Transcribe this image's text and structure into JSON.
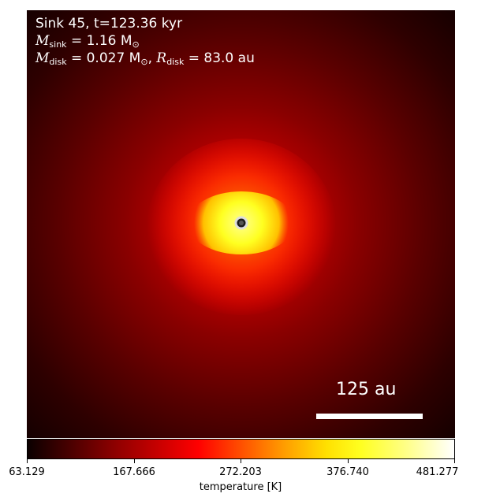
{
  "image": {
    "title_line1": "Sink 45, t=123.36 kyr",
    "m_sink_label": "M",
    "m_sink_sub": "sink",
    "m_sink_value": " = 1.16 M",
    "m_sink_unit_sub": "⊙",
    "m_disk_label": "M",
    "m_disk_sub": "disk",
    "m_disk_value": " = 0.027 M",
    "m_disk_unit_sub": "⊙",
    "r_disk_sep": ", ",
    "r_disk_label": "R",
    "r_disk_sub": "disk",
    "r_disk_value": " = 83.0 au",
    "scale_bar_label": "125 au",
    "colormap": "hot",
    "sink_marker": "white circle with dark ring"
  },
  "colorbar": {
    "label": "temperature [K]",
    "ticks": [
      "63.129",
      "167.666",
      "272.203",
      "376.740",
      "481.277"
    ]
  }
}
